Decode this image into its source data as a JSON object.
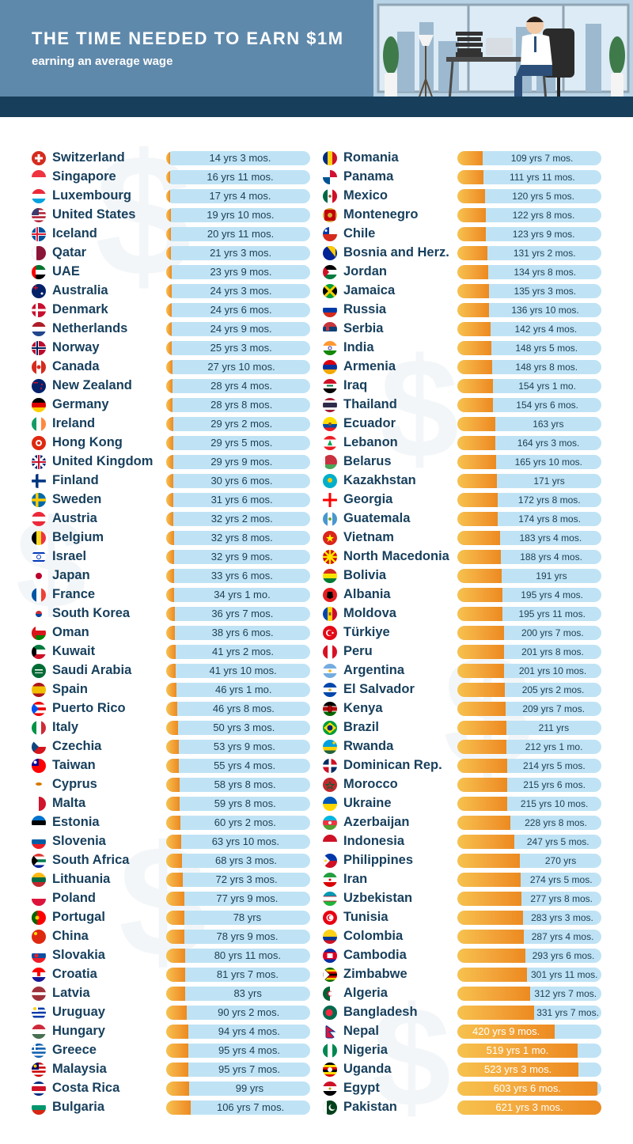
{
  "header": {
    "title": "THE TIME NEEDED TO EARN $1M",
    "subtitle": "earning an average wage"
  },
  "colors": {
    "header_bg": "#5f89ab",
    "header_band": "#173f5c",
    "bar_track": "#bfe3f5",
    "bar_fill_start": "#f7c24e",
    "bar_fill_end": "#ec8a20",
    "country_text": "#173f5c",
    "watermark": "#f3f6f8"
  },
  "chart_data": {
    "type": "bar",
    "orientation": "horizontal",
    "unit": "years",
    "x_min": 0,
    "x_max": 621.25,
    "columns": [
      {
        "rows": [
          {
            "country": "Switzerland",
            "label": "14 yrs 3 mos.",
            "years": 14.25,
            "flag": "switzerland-flag"
          },
          {
            "country": "Singapore",
            "label": "16 yrs 11 mos.",
            "years": 16.92,
            "flag": "singapore-flag"
          },
          {
            "country": "Luxembourg",
            "label": "17 yrs 4 mos.",
            "years": 17.33,
            "flag": "luxembourg-flag"
          },
          {
            "country": "United States",
            "label": "19 yrs 10 mos.",
            "years": 19.83,
            "flag": "united-states-flag"
          },
          {
            "country": "Iceland",
            "label": "20 yrs 11 mos.",
            "years": 20.92,
            "flag": "iceland-flag"
          },
          {
            "country": "Qatar",
            "label": "21 yrs 3 mos.",
            "years": 21.25,
            "flag": "qatar-flag"
          },
          {
            "country": "UAE",
            "label": "23 yrs 9 mos.",
            "years": 23.75,
            "flag": "uae-flag"
          },
          {
            "country": "Australia",
            "label": "24 yrs 3 mos.",
            "years": 24.25,
            "flag": "australia-flag"
          },
          {
            "country": "Denmark",
            "label": "24 yrs 6 mos.",
            "years": 24.5,
            "flag": "denmark-flag"
          },
          {
            "country": "Netherlands",
            "label": "24 yrs 9 mos.",
            "years": 24.75,
            "flag": "netherlands-flag"
          },
          {
            "country": "Norway",
            "label": "25 yrs 3 mos.",
            "years": 25.25,
            "flag": "norway-flag"
          },
          {
            "country": "Canada",
            "label": "27 yrs 10 mos.",
            "years": 27.83,
            "flag": "canada-flag"
          },
          {
            "country": "New Zealand",
            "label": "28 yrs 4 mos.",
            "years": 28.33,
            "flag": "new-zealand-flag"
          },
          {
            "country": "Germany",
            "label": "28 yrs 8 mos.",
            "years": 28.67,
            "flag": "germany-flag"
          },
          {
            "country": "Ireland",
            "label": "29 yrs 2 mos.",
            "years": 29.17,
            "flag": "ireland-flag"
          },
          {
            "country": "Hong Kong",
            "label": "29 yrs 5 mos.",
            "years": 29.42,
            "flag": "hong-kong-flag"
          },
          {
            "country": "United Kingdom",
            "label": "29 yrs 9 mos.",
            "years": 29.75,
            "flag": "united-kingdom-flag"
          },
          {
            "country": "Finland",
            "label": "30 yrs 6 mos.",
            "years": 30.5,
            "flag": "finland-flag"
          },
          {
            "country": "Sweden",
            "label": "31 yrs 6 mos.",
            "years": 31.5,
            "flag": "sweden-flag"
          },
          {
            "country": "Austria",
            "label": "32 yrs 2 mos.",
            "years": 32.17,
            "flag": "austria-flag"
          },
          {
            "country": "Belgium",
            "label": "32 yrs 8 mos.",
            "years": 32.67,
            "flag": "belgium-flag"
          },
          {
            "country": "Israel",
            "label": "32 yrs 9 mos.",
            "years": 32.75,
            "flag": "israel-flag"
          },
          {
            "country": "Japan",
            "label": "33 yrs 6 mos.",
            "years": 33.5,
            "flag": "japan-flag"
          },
          {
            "country": "France",
            "label": "34 yrs 1 mo.",
            "years": 34.08,
            "flag": "france-flag"
          },
          {
            "country": "South Korea",
            "label": "36 yrs 7 mos.",
            "years": 36.58,
            "flag": "south-korea-flag"
          },
          {
            "country": "Oman",
            "label": "38 yrs 6 mos.",
            "years": 38.5,
            "flag": "oman-flag"
          },
          {
            "country": "Kuwait",
            "label": "41 yrs 2 mos.",
            "years": 41.17,
            "flag": "kuwait-flag"
          },
          {
            "country": "Saudi Arabia",
            "label": "41 yrs 10 mos.",
            "years": 41.83,
            "flag": "saudi-arabia-flag"
          },
          {
            "country": "Spain",
            "label": "46 yrs 1 mo.",
            "years": 46.08,
            "flag": "spain-flag"
          },
          {
            "country": "Puerto Rico",
            "label": "46 yrs 8 mos.",
            "years": 46.67,
            "flag": "puerto-rico-flag"
          },
          {
            "country": "Italy",
            "label": "50 yrs 3 mos.",
            "years": 50.25,
            "flag": "italy-flag"
          },
          {
            "country": "Czechia",
            "label": "53 yrs 9 mos.",
            "years": 53.75,
            "flag": "czechia-flag"
          },
          {
            "country": "Taiwan",
            "label": "55 yrs 4 mos.",
            "years": 55.33,
            "flag": "taiwan-flag"
          },
          {
            "country": "Cyprus",
            "label": "58 yrs 8 mos.",
            "years": 58.67,
            "flag": "cyprus-flag"
          },
          {
            "country": "Malta",
            "label": "59 yrs 8 mos.",
            "years": 59.67,
            "flag": "malta-flag"
          },
          {
            "country": "Estonia",
            "label": "60 yrs 2 mos.",
            "years": 60.17,
            "flag": "estonia-flag"
          },
          {
            "country": "Slovenia",
            "label": "63 yrs 10 mos.",
            "years": 63.83,
            "flag": "slovenia-flag"
          },
          {
            "country": "South Africa",
            "label": "68 yrs 3 mos.",
            "years": 68.25,
            "flag": "south-africa-flag"
          },
          {
            "country": "Lithuania",
            "label": "72 yrs 3 mos.",
            "years": 72.25,
            "flag": "lithuania-flag"
          },
          {
            "country": "Poland",
            "label": "77 yrs 9 mos.",
            "years": 77.75,
            "flag": "poland-flag"
          },
          {
            "country": "Portugal",
            "label": "78 yrs",
            "years": 78.0,
            "flag": "portugal-flag"
          },
          {
            "country": "China",
            "label": "78 yrs 9 mos.",
            "years": 78.75,
            "flag": "china-flag"
          },
          {
            "country": "Slovakia",
            "label": "80 yrs 11 mos.",
            "years": 80.92,
            "flag": "slovakia-flag"
          },
          {
            "country": "Croatia",
            "label": "81 yrs 7 mos.",
            "years": 81.58,
            "flag": "croatia-flag"
          },
          {
            "country": "Latvia",
            "label": "83 yrs",
            "years": 83.0,
            "flag": "latvia-flag"
          },
          {
            "country": "Uruguay",
            "label": "90 yrs 2 mos.",
            "years": 90.17,
            "flag": "uruguay-flag"
          },
          {
            "country": "Hungary",
            "label": "94 yrs 4 mos.",
            "years": 94.33,
            "flag": "hungary-flag"
          },
          {
            "country": "Greece",
            "label": "95 yrs 4 mos.",
            "years": 95.33,
            "flag": "greece-flag"
          },
          {
            "country": "Malaysia",
            "label": "95 yrs 7 mos.",
            "years": 95.58,
            "flag": "malaysia-flag"
          },
          {
            "country": "Costa Rica",
            "label": "99 yrs",
            "years": 99.0,
            "flag": "costa-rica-flag"
          },
          {
            "country": "Bulgaria",
            "label": "106 yrs 7 mos.",
            "years": 106.58,
            "flag": "bulgaria-flag"
          }
        ]
      },
      {
        "rows": [
          {
            "country": "Romania",
            "label": "109 yrs 7 mos.",
            "years": 109.58,
            "flag": "romania-flag"
          },
          {
            "country": "Panama",
            "label": "111 yrs 11 mos.",
            "years": 111.92,
            "flag": "panama-flag"
          },
          {
            "country": "Mexico",
            "label": "120 yrs 5 mos.",
            "years": 120.42,
            "flag": "mexico-flag"
          },
          {
            "country": "Montenegro",
            "label": "122 yrs 8 mos.",
            "years": 122.67,
            "flag": "montenegro-flag"
          },
          {
            "country": "Chile",
            "label": "123 yrs 9 mos.",
            "years": 123.75,
            "flag": "chile-flag"
          },
          {
            "country": "Bosnia and Herz.",
            "label": "131 yrs 2 mos.",
            "years": 131.17,
            "flag": "bosnia-flag"
          },
          {
            "country": "Jordan",
            "label": "134 yrs 8 mos.",
            "years": 134.67,
            "flag": "jordan-flag"
          },
          {
            "country": "Jamaica",
            "label": "135 yrs 3 mos.",
            "years": 135.25,
            "flag": "jamaica-flag"
          },
          {
            "country": "Russia",
            "label": "136 yrs 10 mos.",
            "years": 136.83,
            "flag": "russia-flag"
          },
          {
            "country": "Serbia",
            "label": "142 yrs 4 mos.",
            "years": 142.33,
            "flag": "serbia-flag"
          },
          {
            "country": "India",
            "label": "148 yrs 5 mos.",
            "years": 148.42,
            "flag": "india-flag"
          },
          {
            "country": "Armenia",
            "label": "148 yrs 8 mos.",
            "years": 148.67,
            "flag": "armenia-flag"
          },
          {
            "country": "Iraq",
            "label": "154 yrs 1 mo.",
            "years": 154.08,
            "flag": "iraq-flag"
          },
          {
            "country": "Thailand",
            "label": "154 yrs 6 mos.",
            "years": 154.5,
            "flag": "thailand-flag"
          },
          {
            "country": "Ecuador",
            "label": "163 yrs",
            "years": 163.0,
            "flag": "ecuador-flag"
          },
          {
            "country": "Lebanon",
            "label": "164 yrs 3 mos.",
            "years": 164.25,
            "flag": "lebanon-flag"
          },
          {
            "country": "Belarus",
            "label": "165 yrs 10 mos.",
            "years": 165.83,
            "flag": "belarus-flag"
          },
          {
            "country": "Kazakhstan",
            "label": "171 yrs",
            "years": 171.0,
            "flag": "kazakhstan-flag"
          },
          {
            "country": "Georgia",
            "label": "172 yrs 8 mos.",
            "years": 172.67,
            "flag": "georgia-flag"
          },
          {
            "country": "Guatemala",
            "label": "174 yrs 8 mos.",
            "years": 174.67,
            "flag": "guatemala-flag"
          },
          {
            "country": "Vietnam",
            "label": "183 yrs 4 mos.",
            "years": 183.33,
            "flag": "vietnam-flag"
          },
          {
            "country": "North Macedonia",
            "label": "188 yrs 4 mos.",
            "years": 188.33,
            "flag": "north-macedonia-flag"
          },
          {
            "country": "Bolivia",
            "label": "191 yrs",
            "years": 191.0,
            "flag": "bolivia-flag"
          },
          {
            "country": "Albania",
            "label": "195 yrs 4 mos.",
            "years": 195.33,
            "flag": "albania-flag"
          },
          {
            "country": "Moldova",
            "label": "195 yrs 11 mos.",
            "years": 195.92,
            "flag": "moldova-flag"
          },
          {
            "country": "Türkiye",
            "label": "200 yrs 7 mos.",
            "years": 200.58,
            "flag": "turkiye-flag"
          },
          {
            "country": "Peru",
            "label": "201 yrs 8 mos.",
            "years": 201.67,
            "flag": "peru-flag"
          },
          {
            "country": "Argentina",
            "label": "201 yrs 10 mos.",
            "years": 201.83,
            "flag": "argentina-flag"
          },
          {
            "country": "El Salvador",
            "label": "205 yrs 2 mos.",
            "years": 205.17,
            "flag": "el-salvador-flag"
          },
          {
            "country": "Kenya",
            "label": "209 yrs 7 mos.",
            "years": 209.58,
            "flag": "kenya-flag"
          },
          {
            "country": "Brazil",
            "label": "211 yrs",
            "years": 211.0,
            "flag": "brazil-flag"
          },
          {
            "country": "Rwanda",
            "label": "212 yrs 1 mo.",
            "years": 212.08,
            "flag": "rwanda-flag"
          },
          {
            "country": "Dominican Rep.",
            "label": "214 yrs 5 mos.",
            "years": 214.42,
            "flag": "dominican-republic-flag"
          },
          {
            "country": "Morocco",
            "label": "215 yrs 6 mos.",
            "years": 215.5,
            "flag": "morocco-flag"
          },
          {
            "country": "Ukraine",
            "label": "215 yrs 10 mos.",
            "years": 215.83,
            "flag": "ukraine-flag"
          },
          {
            "country": "Azerbaijan",
            "label": "228 yrs 8 mos.",
            "years": 228.67,
            "flag": "azerbaijan-flag"
          },
          {
            "country": "Indonesia",
            "label": "247 yrs 5 mos.",
            "years": 247.42,
            "flag": "indonesia-flag"
          },
          {
            "country": "Philippines",
            "label": "270 yrs",
            "years": 270.0,
            "flag": "philippines-flag"
          },
          {
            "country": "Iran",
            "label": "274 yrs 5 mos.",
            "years": 274.42,
            "flag": "iran-flag"
          },
          {
            "country": "Uzbekistan",
            "label": "277 yrs 8 mos.",
            "years": 277.67,
            "flag": "uzbekistan-flag"
          },
          {
            "country": "Tunisia",
            "label": "283 yrs 3 mos.",
            "years": 283.25,
            "flag": "tunisia-flag"
          },
          {
            "country": "Colombia",
            "label": "287 yrs 4 mos.",
            "years": 287.33,
            "flag": "colombia-flag"
          },
          {
            "country": "Cambodia",
            "label": "293 yrs 6 mos.",
            "years": 293.5,
            "flag": "cambodia-flag"
          },
          {
            "country": "Zimbabwe",
            "label": "301 yrs 11 mos.",
            "years": 301.92,
            "flag": "zimbabwe-flag"
          },
          {
            "country": "Algeria",
            "label": "312 yrs 7 mos.",
            "years": 312.58,
            "flag": "algeria-flag"
          },
          {
            "country": "Bangladesh",
            "label": "331 yrs 7 mos.",
            "years": 331.58,
            "flag": "bangladesh-flag"
          },
          {
            "country": "Nepal",
            "label": "420 yrs 9 mos.",
            "years": 420.75,
            "flag": "nepal-flag"
          },
          {
            "country": "Nigeria",
            "label": "519 yrs 1 mo.",
            "years": 519.08,
            "flag": "nigeria-flag"
          },
          {
            "country": "Uganda",
            "label": "523 yrs 3 mos.",
            "years": 523.25,
            "flag": "uganda-flag"
          },
          {
            "country": "Egypt",
            "label": "603 yrs 6 mos.",
            "years": 603.5,
            "flag": "egypt-flag"
          },
          {
            "country": "Pakistan",
            "label": "621 yrs 3 mos.",
            "years": 621.25,
            "flag": "pakistan-flag"
          }
        ]
      }
    ]
  }
}
